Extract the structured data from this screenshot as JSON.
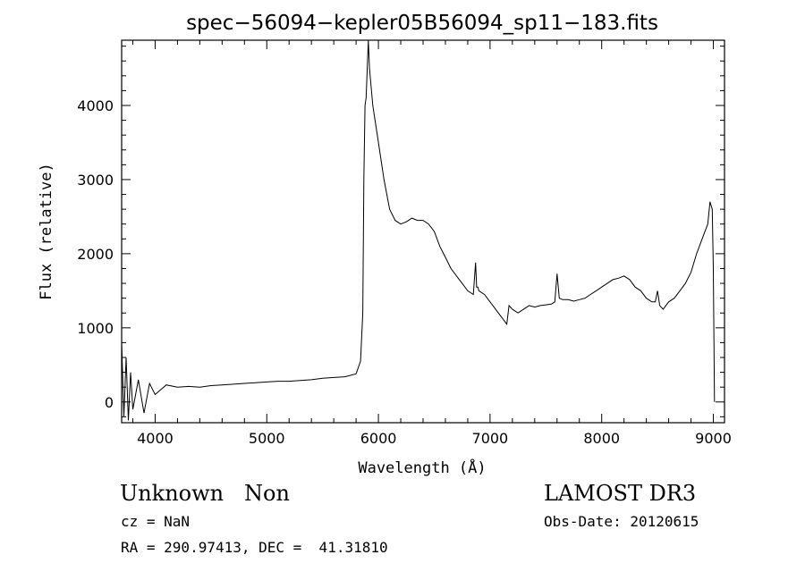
{
  "chart_data": {
    "type": "line",
    "title": "spec−56094−kepler05B56094_sp11−183.fits",
    "xlabel": "Wavelength (Å)",
    "ylabel": "Flux (relative)",
    "xlim": [
      3700,
      9100
    ],
    "ylim": [
      -280,
      4880
    ],
    "xticks": [
      4000,
      5000,
      6000,
      7000,
      8000,
      9000
    ],
    "yticks": [
      0,
      1000,
      2000,
      3000,
      4000
    ],
    "grid": false,
    "legend": "none",
    "line_color": "#000000",
    "x": [
      3700,
      3720,
      3740,
      3760,
      3780,
      3800,
      3850,
      3900,
      3950,
      4000,
      4100,
      4200,
      4300,
      4400,
      4500,
      4600,
      4700,
      4800,
      4900,
      5000,
      5100,
      5200,
      5300,
      5400,
      5500,
      5600,
      5700,
      5800,
      5840,
      5860,
      5870,
      5880,
      5890,
      5900,
      5910,
      5920,
      5950,
      6000,
      6050,
      6100,
      6150,
      6200,
      6250,
      6300,
      6350,
      6400,
      6450,
      6500,
      6550,
      6600,
      6650,
      6700,
      6750,
      6800,
      6850,
      6870,
      6880,
      6890,
      6900,
      6950,
      7000,
      7050,
      7100,
      7150,
      7170,
      7200,
      7250,
      7300,
      7350,
      7400,
      7450,
      7500,
      7550,
      7580,
      7600,
      7620,
      7650,
      7700,
      7750,
      7800,
      7850,
      7900,
      7950,
      8000,
      8050,
      8100,
      8150,
      8200,
      8250,
      8300,
      8350,
      8400,
      8450,
      8480,
      8500,
      8520,
      8550,
      8600,
      8650,
      8700,
      8750,
      8800,
      8850,
      8900,
      8950,
      8970,
      8990,
      9000,
      9010
    ],
    "y": [
      800,
      -200,
      600,
      -250,
      400,
      -100,
      300,
      -150,
      250,
      100,
      230,
      200,
      210,
      200,
      220,
      230,
      240,
      250,
      260,
      270,
      280,
      280,
      290,
      300,
      320,
      330,
      340,
      380,
      550,
      1200,
      3000,
      4000,
      4100,
      4500,
      4880,
      4500,
      4000,
      3500,
      3000,
      2600,
      2450,
      2400,
      2430,
      2480,
      2450,
      2450,
      2400,
      2300,
      2100,
      1950,
      1800,
      1700,
      1600,
      1500,
      1450,
      1880,
      1550,
      1550,
      1500,
      1450,
      1350,
      1250,
      1150,
      1050,
      1300,
      1250,
      1200,
      1250,
      1300,
      1280,
      1300,
      1310,
      1320,
      1350,
      1730,
      1400,
      1380,
      1380,
      1360,
      1380,
      1400,
      1450,
      1500,
      1550,
      1600,
      1650,
      1670,
      1700,
      1650,
      1550,
      1500,
      1400,
      1350,
      1350,
      1500,
      1300,
      1250,
      1350,
      1400,
      1500,
      1600,
      1750,
      2000,
      2200,
      2400,
      2700,
      2600,
      1800,
      0
    ]
  }
}
